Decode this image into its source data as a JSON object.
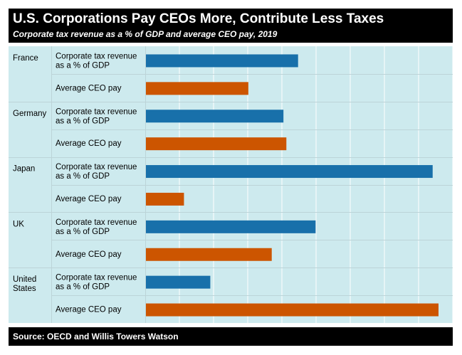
{
  "header": {
    "title": "U.S. Corporations Pay CEOs More, Contribute Less Taxes",
    "subtitle": "Corporate tax revenue as a % of GDP and average CEO pay, 2019"
  },
  "footer": {
    "source": "Source: OECD and Willis Towers Watson"
  },
  "colors": {
    "tax": "#1870aa",
    "ceo": "#cc5500",
    "panel": "#cdeaee",
    "grid": "#ffffff"
  },
  "chart_data": {
    "type": "bar",
    "orientation": "horizontal",
    "title": "U.S. Corporations Pay CEOs More, Contribute Less Taxes",
    "subtitle": "Corporate tax revenue as a % of GDP and average CEO pay, 2019",
    "xlabel": "",
    "ylabel": "",
    "grid": true,
    "groups": [
      {
        "country": [
          "France"
        ],
        "rows": [
          {
            "label": [
              "Corporate tax revenue",
              "as a % of GDP"
            ],
            "series": "tax",
            "value": 0.52
          },
          {
            "label": [
              "Average CEO pay"
            ],
            "series": "ceo",
            "value": 0.35
          }
        ]
      },
      {
        "country": [
          "Germany"
        ],
        "rows": [
          {
            "label": [
              "Corporate tax revenue",
              "as a % of GDP"
            ],
            "series": "tax",
            "value": 0.47
          },
          {
            "label": [
              "Average CEO pay"
            ],
            "series": "ceo",
            "value": 0.48
          }
        ]
      },
      {
        "country": [
          "Japan"
        ],
        "rows": [
          {
            "label": [
              "Corporate tax revenue",
              "as a % of GDP"
            ],
            "series": "tax",
            "value": 0.98
          },
          {
            "label": [
              "Average CEO pay"
            ],
            "series": "ceo",
            "value": 0.13
          }
        ]
      },
      {
        "country": [
          "UK"
        ],
        "rows": [
          {
            "label": [
              "Corporate tax revenue",
              "as a % of GDP"
            ],
            "series": "tax",
            "value": 0.58
          },
          {
            "label": [
              "Average CEO pay"
            ],
            "series": "ceo",
            "value": 0.43
          }
        ]
      },
      {
        "country": [
          "United",
          "States"
        ],
        "rows": [
          {
            "label": [
              "Corporate tax revenue",
              "as a % of GDP"
            ],
            "series": "tax",
            "value": 0.22
          },
          {
            "label": [
              "Average CEO pay"
            ],
            "series": "ceo",
            "value": 1.0
          }
        ]
      }
    ]
  }
}
